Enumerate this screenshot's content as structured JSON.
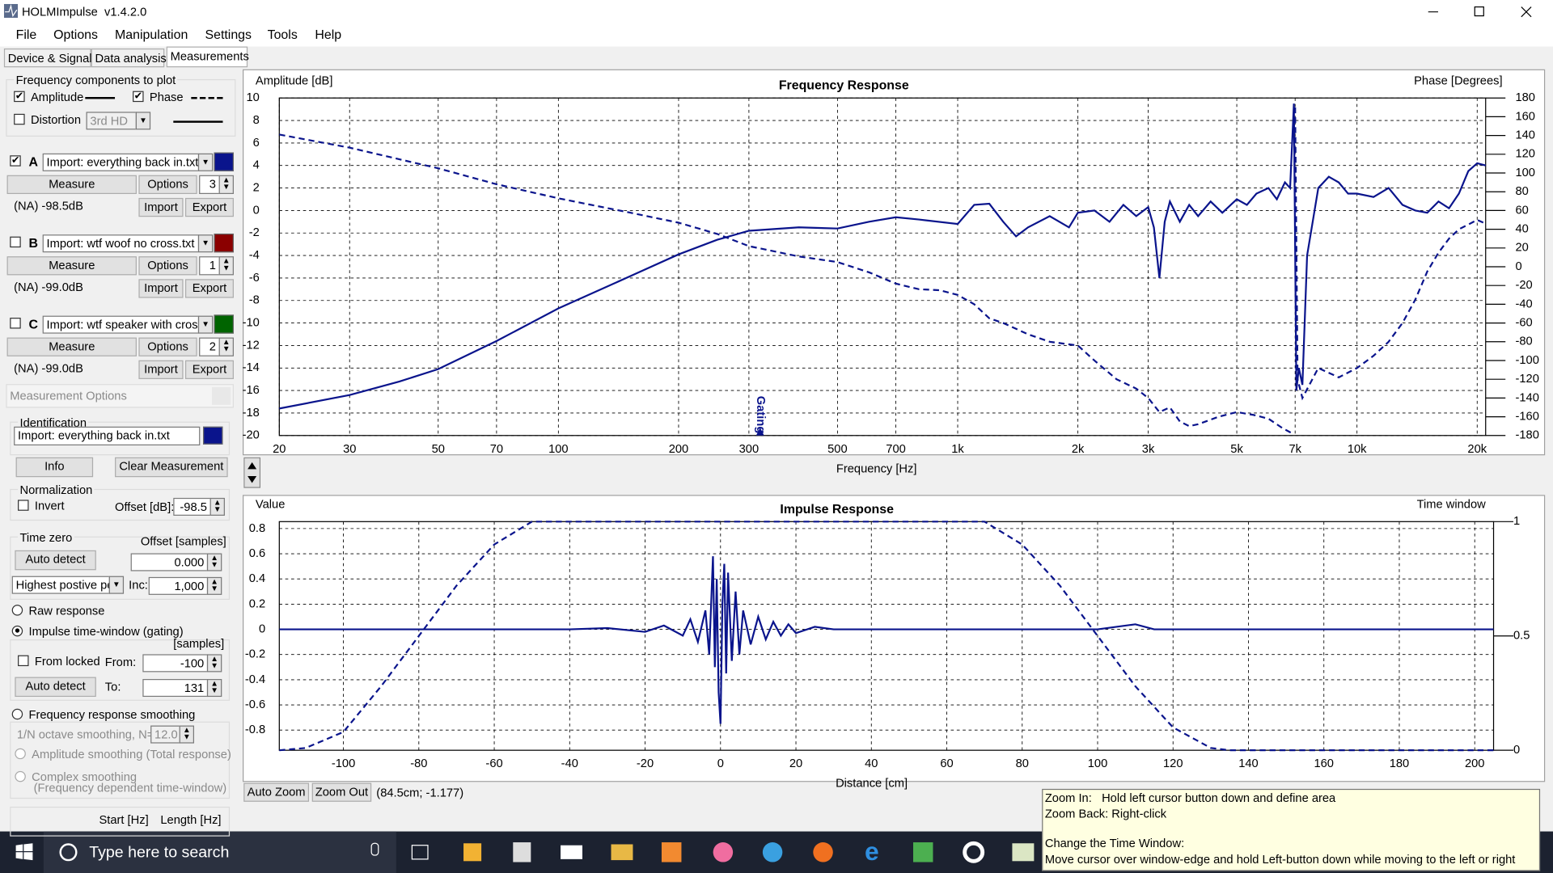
{
  "window": {
    "title": "HOLMImpulse  v1.4.2.0"
  },
  "menu": [
    "File",
    "Options",
    "Manipulation",
    "Settings",
    "Tools",
    "Help"
  ],
  "tabs": [
    "Device & Signal",
    "Data analysis",
    "Measurements"
  ],
  "plot_options": {
    "title": "Frequency components to plot",
    "amplitude_checked": true,
    "phase_checked": true,
    "distortion": "Distortion",
    "distortion_checked": false,
    "distortion_type": "3rd HD"
  },
  "measurements": [
    {
      "letter": "A",
      "checked": true,
      "file": "Import: everything back in.txt",
      "color": "#0a148c",
      "measure": "Measure",
      "options": "Options",
      "count": "3",
      "level": "(NA) -98.5dB",
      "import": "Import",
      "export": "Export"
    },
    {
      "letter": "B",
      "checked": false,
      "file": "Import: wtf woof no cross.txt",
      "color": "#8b0000",
      "measure": "Measure",
      "options": "Options",
      "count": "1",
      "level": "(NA) -99.0dB",
      "import": "Import",
      "export": "Export"
    },
    {
      "letter": "C",
      "checked": false,
      "file": "Import: wtf speaker with cross.t",
      "color": "#006400",
      "measure": "Measure",
      "options": "Options",
      "count": "2",
      "level": "(NA) -99.0dB",
      "import": "Import",
      "export": "Export"
    }
  ],
  "measurement_options": {
    "title": "Measurement Options",
    "identification": "Identification",
    "id_file": "Import: everything back in.txt",
    "info": "Info",
    "clear": "Clear Measurement",
    "normalization": "Normalization",
    "invert": "Invert",
    "invert_checked": false,
    "offset_label": "Offset [dB]:",
    "offset": "-98.5",
    "time_zero": "Time zero",
    "offset_samples": "Offset [samples]",
    "auto_detect": "Auto detect",
    "time_zero_value": "0.000",
    "detect_mode": "Highest postive pe",
    "inc_label": "Inc:",
    "inc": "1,000",
    "raw": "Raw response",
    "raw_checked": false,
    "gating": "Impulse time-window (gating)",
    "gating_checked": true,
    "samples": "[samples]",
    "from_locked": "From locked",
    "from_locked_checked": false,
    "from_label": "From:",
    "from": "-100",
    "auto_detect_2": "Auto detect",
    "to_label": "To:",
    "to": "131",
    "smoothing": "Frequency response smoothing",
    "smoothing_checked": false,
    "octave": "1/N octave smoothing, N=",
    "octave_n": "12.0",
    "amplitude_smoothing": "Amplitude smoothing (Total response)",
    "complex_smoothing": "Complex smoothing",
    "complex_smoothing_note": "(Frequency dependent time-window)",
    "start": "Start [Hz]",
    "length": "Length [Hz]"
  },
  "zoom": {
    "auto_zoom": "Auto Zoom",
    "zoom_out": "Zoom Out",
    "cursor": "(84.5cm; -1.177)"
  },
  "tooltip": [
    "Zoom In:   Hold left cursor button down and define area",
    "Zoom Back: Right-click",
    "Change the Time Window:",
    "Move cursor over window-edge and hold Left-button down while moving to the left or right"
  ],
  "taskbar": {
    "search": "Type here to search"
  },
  "chart_data": [
    {
      "type": "line",
      "title": "Frequency Response",
      "ylabel": "Amplitude [dB]",
      "y2label": "Phase [Degrees]",
      "xlabel": "Frequency [Hz]",
      "log_x": true,
      "grid": true,
      "xlim": [
        20,
        21000
      ],
      "ylim": [
        -20,
        10
      ],
      "y2lim": [
        -180,
        180
      ],
      "xticks": [
        20,
        30,
        50,
        70,
        100,
        200,
        300,
        500,
        700,
        {
          "value": 1000,
          "label": "1k"
        },
        {
          "value": 2000,
          "label": "2k"
        },
        {
          "value": 3000,
          "label": "3k"
        },
        {
          "value": 5000,
          "label": "5k"
        },
        {
          "value": 7000,
          "label": "7k"
        },
        {
          "value": 10000,
          "label": "10k"
        },
        {
          "value": 20000,
          "label": "20k"
        }
      ],
      "yticks": [
        10,
        8,
        6,
        4,
        2,
        0,
        -2,
        -4,
        -6,
        -8,
        -10,
        -12,
        -14,
        -16,
        -18,
        -20
      ],
      "y2ticks": [
        180,
        160,
        140,
        120,
        100,
        80,
        60,
        40,
        20,
        0,
        -20,
        -40,
        -60,
        -80,
        -100,
        -120,
        -140,
        -160,
        -180
      ],
      "annotations": [
        {
          "text": "Gating",
          "x": 320
        }
      ],
      "series": [
        {
          "name": "Amplitude",
          "color": "#0a148c",
          "dash": false,
          "x": [
            20,
            30,
            40,
            50,
            70,
            100,
            150,
            200,
            250,
            300,
            400,
            500,
            600,
            700,
            800,
            1000,
            1100,
            1200,
            1300,
            1400,
            1500,
            1700,
            1900,
            2000,
            2200,
            2400,
            2600,
            2800,
            3000,
            3100,
            3200,
            3300,
            3400,
            3600,
            3800,
            4000,
            4300,
            4600,
            5000,
            5300,
            5600,
            6000,
            6300,
            6600,
            6800,
            6950,
            7050,
            7150,
            7300,
            7500,
            8000,
            8500,
            9000,
            9500,
            10000,
            11000,
            12000,
            13000,
            14000,
            15000,
            16000,
            17000,
            18000,
            19000,
            20000,
            21000
          ],
          "values": [
            -17.6,
            -16.4,
            -15.2,
            -14.1,
            -11.6,
            -8.7,
            -5.9,
            -3.9,
            -2.6,
            -1.8,
            -1.5,
            -1.6,
            -1,
            -0.6,
            -0.8,
            -1.2,
            0.5,
            0.6,
            -1,
            -2.3,
            -1.5,
            -0.5,
            -1.5,
            -0.2,
            0,
            -1,
            0.5,
            -0.5,
            0.3,
            -1.5,
            -6,
            -1,
            0.8,
            -1,
            0.5,
            -0.5,
            0.8,
            -0.2,
            1,
            0.5,
            1.5,
            2,
            1,
            2.5,
            2,
            9.5,
            -16,
            -14,
            -15.5,
            -4,
            2,
            3,
            2.5,
            1.5,
            1.5,
            1.2,
            2,
            0.5,
            0,
            -0.2,
            0.8,
            0.2,
            1.5,
            3.5,
            4.2,
            4
          ]
        },
        {
          "name": "Phase",
          "color": "#0a148c",
          "dash": true,
          "axis": "y2",
          "x": [
            20,
            30,
            50,
            70,
            100,
            150,
            200,
            250,
            300,
            400,
            500,
            600,
            700,
            800,
            900,
            1000,
            1100,
            1200,
            1300,
            1500,
            1700,
            2000,
            2200,
            2500,
            2800,
            3000,
            3200,
            3400,
            3600,
            3800,
            4000,
            4500,
            5000,
            5500,
            6000,
            6500,
            6900,
            6950,
            7000,
            7100,
            7300,
            8000,
            9000,
            10000,
            11000,
            12000,
            13000,
            14000,
            15000,
            16000,
            17000,
            18000,
            19000,
            20000,
            21000
          ],
          "values": [
            141,
            127,
            105,
            88,
            73,
            58,
            47,
            35,
            22,
            11,
            5,
            -6,
            -18,
            -24,
            -25,
            -30,
            -40,
            -55,
            -60,
            -72,
            -80,
            -84,
            -100,
            -120,
            -130,
            -140,
            -155,
            -150,
            -165,
            -170,
            -168,
            -160,
            -155,
            -158,
            -162,
            -172,
            -178,
            null,
            170,
            -120,
            -140,
            -108,
            -118,
            -108,
            -95,
            -80,
            -60,
            -35,
            -5,
            15,
            30,
            40,
            45,
            50,
            46
          ]
        }
      ]
    },
    {
      "type": "line",
      "title": "Impulse Response",
      "ylabel": "Value",
      "y2label": "Time window",
      "xlabel": "Distance [cm]",
      "log_x": false,
      "grid": true,
      "xlim": [
        -117,
        205
      ],
      "ylim": [
        -0.96,
        0.855
      ],
      "y2lim": [
        0,
        1
      ],
      "xticks": [
        -100,
        -80,
        -60,
        -40,
        -20,
        0,
        20,
        40,
        60,
        80,
        100,
        120,
        140,
        160,
        180,
        200
      ],
      "yticks": [
        0.8,
        0.6,
        0.4,
        0.2,
        0,
        -0.2,
        -0.4,
        -0.6,
        -0.8
      ],
      "y2ticks": [
        1,
        0.5,
        0
      ],
      "series": [
        {
          "color": "#0a148c",
          "dash": false,
          "x": [
            -117,
            -40,
            -30,
            -20,
            -15,
            -10,
            -8,
            -6,
            -4,
            -3,
            -2,
            -1.5,
            -1,
            -0.5,
            0,
            0.5,
            1,
            1.5,
            2,
            3,
            4,
            5,
            6,
            8,
            10,
            12,
            14,
            16,
            18,
            20,
            25,
            30,
            40,
            100,
            105,
            110,
            115,
            120,
            205
          ],
          "values": [
            0,
            0,
            0.01,
            -0.02,
            0.03,
            -0.05,
            0.08,
            -0.1,
            0.15,
            -0.2,
            0.58,
            -0.3,
            0.4,
            -0.5,
            -0.75,
            0.2,
            0.52,
            -0.35,
            0.45,
            -0.25,
            0.3,
            -0.2,
            0.15,
            -0.12,
            0.1,
            -0.08,
            0.06,
            -0.05,
            0.04,
            -0.03,
            0.02,
            0,
            0,
            0,
            0.02,
            0.04,
            0,
            0,
            0
          ]
        },
        {
          "color": "#0a148c",
          "dash": true,
          "axis": "y2",
          "x": [
            -117,
            -110,
            -100,
            -90,
            -80,
            -70,
            -60,
            -50,
            70,
            80,
            90,
            100,
            110,
            120,
            130,
            135,
            205
          ],
          "values": [
            0,
            0.01,
            0.08,
            0.28,
            0.5,
            0.72,
            0.9,
            1,
            1,
            0.9,
            0.72,
            0.5,
            0.28,
            0.1,
            0.01,
            0,
            0
          ]
        }
      ]
    }
  ]
}
